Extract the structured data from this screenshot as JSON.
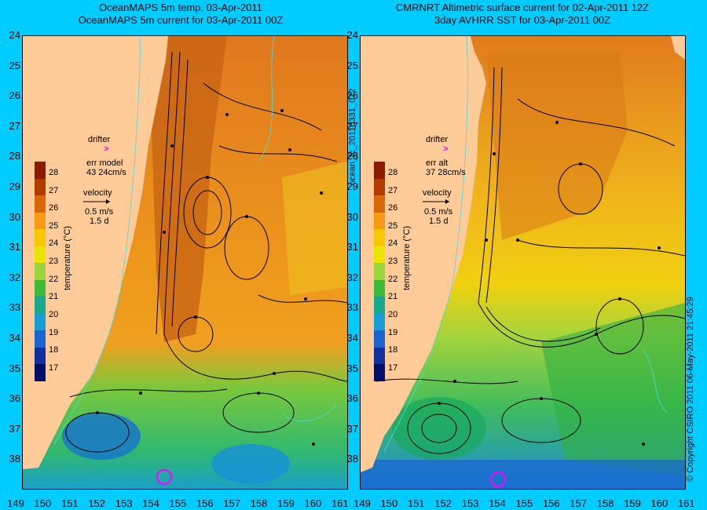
{
  "titles": {
    "left_line1": "OceanMAPS 5m temp. 03-Apr-2011",
    "left_line2": "OceanMAPS 5m current for 03-Apr-2011 00Z",
    "right_line1": "CMRNRT Altimetric surface current for 02-Apr-2011 12Z",
    "right_line2": "3day AVHRR SST for 03-Apr-2011 00Z"
  },
  "y_ticks": [
    "24",
    "25",
    "26",
    "27",
    "28",
    "29",
    "30",
    "31",
    "32",
    "33",
    "34",
    "35",
    "36",
    "37",
    "38"
  ],
  "x_ticks_left": [
    "149",
    "150",
    "151",
    "152",
    "153",
    "154",
    "155",
    "156",
    "157",
    "158",
    "159",
    "160",
    "161"
  ],
  "x_ticks_right": [
    "153",
    "154",
    "155",
    "156",
    "157",
    "158",
    "159",
    "160",
    "161"
  ],
  "x_ticks_right_first": [
    "149",
    "150",
    "151",
    "152"
  ],
  "left_annotations": {
    "drifter_label": "drifter",
    "drifter_marker": ">",
    "err_label": "err model",
    "err_values": "43 24cm/s",
    "velocity_label": "velocity",
    "velocity_value": "0.5 m/s",
    "velocity_days": "1.5 d"
  },
  "right_annotations": {
    "drifter_label": "drifter",
    "drifter_marker": ">",
    "err_label": "err alt",
    "err_values": "37 28cm/s",
    "velocity_label": "velocity",
    "velocity_value": "0.5 m/s",
    "velocity_days": "1.5 d"
  },
  "colorbar": {
    "ticks": [
      "28",
      "27",
      "26",
      "25",
      "24",
      "23",
      "22",
      "21",
      "20",
      "19",
      "18",
      "17"
    ],
    "title": "temperature (°C)",
    "colors": [
      "#8a1a00",
      "#b23c00",
      "#d8680a",
      "#f59a14",
      "#f7c800",
      "#e9e400",
      "#9bd43c",
      "#3cba3c",
      "#18a88c",
      "#1a9ed8",
      "#1a64d0",
      "#1030a0",
      "#00106a"
    ]
  },
  "side_text": {
    "middle": "ocean_fc_20110331_072",
    "right": "© Copyright CSIRO 2011   06-May-2011 21:45:29"
  }
}
